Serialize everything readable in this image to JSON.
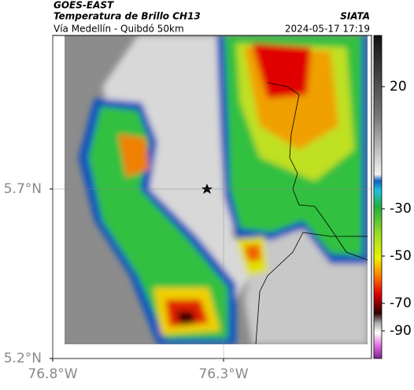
{
  "map": {
    "title": "GOES-EAST",
    "subtitle": "Temperatura de Brillo CH13",
    "source": "SIATA",
    "location": "Vía Medellín - Quibdó 50km",
    "datetime": "2024-05-17 17:19",
    "xlim": [
      -76.8,
      -75.867
    ],
    "ylim": [
      5.2,
      6.153
    ],
    "xticks": [
      {
        "value": -76.8,
        "label": "76.8°W"
      },
      {
        "value": -76.3,
        "label": "76.3°W"
      }
    ],
    "yticks": [
      {
        "value": 5.2,
        "label": "5.2°N"
      },
      {
        "value": 5.7,
        "label": "5.7°N"
      }
    ],
    "colorbar_ticks": [
      20,
      -30,
      -50,
      -70,
      -90
    ]
  }
}
